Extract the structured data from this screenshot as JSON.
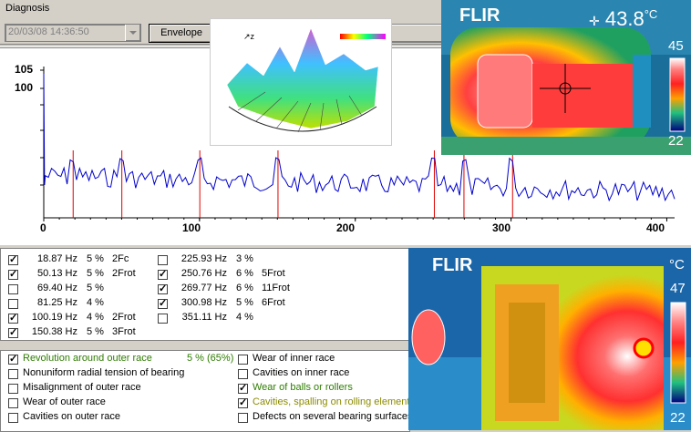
{
  "header": {
    "title": "Diagnosis",
    "date": "20/03/08 14:36:50",
    "mode": "Envelope"
  },
  "inset_3d": {
    "caption": ""
  },
  "spectrum": {
    "y_labels": [
      "105",
      "100"
    ],
    "x_ticks": [
      "0",
      "100",
      "200",
      "300",
      "400"
    ]
  },
  "chart_data": {
    "type": "line",
    "title": "",
    "xlabel": "",
    "ylabel": "",
    "xlim": [
      0,
      405
    ],
    "x_ticks": [
      0,
      100,
      200,
      300,
      400
    ],
    "y_ticks_labeled": [
      105,
      100
    ],
    "marker_lines_hz": [
      18.87,
      50.13,
      100.19,
      150.38,
      250.76,
      269.77,
      300.98
    ],
    "series": [
      {
        "color": "#0000cc",
        "note_values": "noise floor approx level with peaks at marker frequencies"
      }
    ]
  },
  "peaks": {
    "left": [
      {
        "checked": true,
        "freq": "18.87 Hz",
        "pct": "5 %",
        "label": "2Fc"
      },
      {
        "checked": true,
        "freq": "50.13 Hz",
        "pct": "5 %",
        "label": "2Frot"
      },
      {
        "checked": false,
        "freq": "69.40 Hz",
        "pct": "5 %",
        "label": ""
      },
      {
        "checked": false,
        "freq": "81.25 Hz",
        "pct": "4 %",
        "label": ""
      },
      {
        "checked": true,
        "freq": "100.19 Hz",
        "pct": "4 %",
        "label": "2Frot"
      },
      {
        "checked": true,
        "freq": "150.38 Hz",
        "pct": "5 %",
        "label": "3Frot"
      }
    ],
    "right": [
      {
        "checked": false,
        "freq": "225.93 Hz",
        "pct": "3 %",
        "label": ""
      },
      {
        "checked": true,
        "freq": "250.76 Hz",
        "pct": "6 %",
        "label": "5Frot"
      },
      {
        "checked": true,
        "freq": "269.77 Hz",
        "pct": "6 %",
        "label": "11Frot"
      },
      {
        "checked": true,
        "freq": "300.98 Hz",
        "pct": "5 %",
        "label": "6Frot"
      },
      {
        "checked": false,
        "freq": "351.11 Hz",
        "pct": "4 %",
        "label": ""
      }
    ]
  },
  "faults": {
    "left": [
      {
        "checked": true,
        "text": "Revolution around outer race",
        "extra": "5 %  (65%)",
        "style": "green"
      },
      {
        "checked": false,
        "text": "Nonuniform radial tension of bearing",
        "extra": "",
        "style": ""
      },
      {
        "checked": false,
        "text": "Misalignment of outer race",
        "extra": "",
        "style": ""
      },
      {
        "checked": false,
        "text": "Wear of outer race",
        "extra": "",
        "style": ""
      },
      {
        "checked": false,
        "text": "Cavities on outer race",
        "extra": "",
        "style": ""
      }
    ],
    "right": [
      {
        "checked": false,
        "text": "Wear of inner race",
        "style": ""
      },
      {
        "checked": false,
        "text": "Cavities on inner race",
        "style": ""
      },
      {
        "checked": true,
        "text": "Wear of balls or rollers",
        "style": "green"
      },
      {
        "checked": true,
        "text": "Cavities, spalling on rolling elements",
        "style": "olive"
      },
      {
        "checked": false,
        "text": "Defects on several bearing surfaces",
        "style": ""
      }
    ]
  },
  "thermal_top": {
    "brand": "FLIR",
    "temp": "43.8",
    "unit": "°C",
    "scale_max": "45",
    "scale_min": "22"
  },
  "thermal_bottom": {
    "brand": "FLIR",
    "unit": "°C",
    "scale_max": "47",
    "scale_min": "22"
  }
}
